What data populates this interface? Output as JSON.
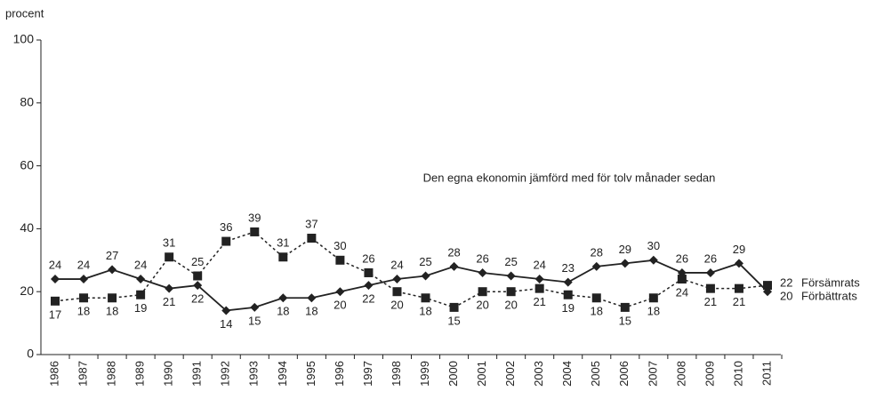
{
  "chart_data": {
    "type": "line",
    "y_label": "procent",
    "annotation": "Den egna ekonomin jämförd med för tolv månader sedan",
    "categories": [
      "1986",
      "1987",
      "1988",
      "1989",
      "1990",
      "1991",
      "1992",
      "1993",
      "1994",
      "1995",
      "1996",
      "1997",
      "1998",
      "1999",
      "2000",
      "2001",
      "2002",
      "2003",
      "2004",
      "2005",
      "2006",
      "2007",
      "2008",
      "2009",
      "2010",
      "2011"
    ],
    "series": [
      {
        "name": "Försämrats",
        "color": "#222222",
        "dash": true,
        "marker": "square",
        "values": [
          17,
          18,
          18,
          19,
          31,
          25,
          36,
          39,
          31,
          37,
          30,
          26,
          20,
          18,
          15,
          20,
          20,
          21,
          19,
          18,
          15,
          18,
          24,
          21,
          21,
          22
        ]
      },
      {
        "name": "Förbättrats",
        "color": "#222222",
        "dash": false,
        "marker": "diamond",
        "values": [
          24,
          24,
          27,
          24,
          21,
          22,
          14,
          15,
          18,
          18,
          20,
          22,
          24,
          25,
          28,
          26,
          25,
          24,
          23,
          28,
          29,
          30,
          26,
          26,
          29,
          20
        ]
      }
    ],
    "ylim": [
      0,
      100
    ],
    "yticks": [
      0,
      20,
      40,
      60,
      80,
      100
    ],
    "grid": false
  }
}
